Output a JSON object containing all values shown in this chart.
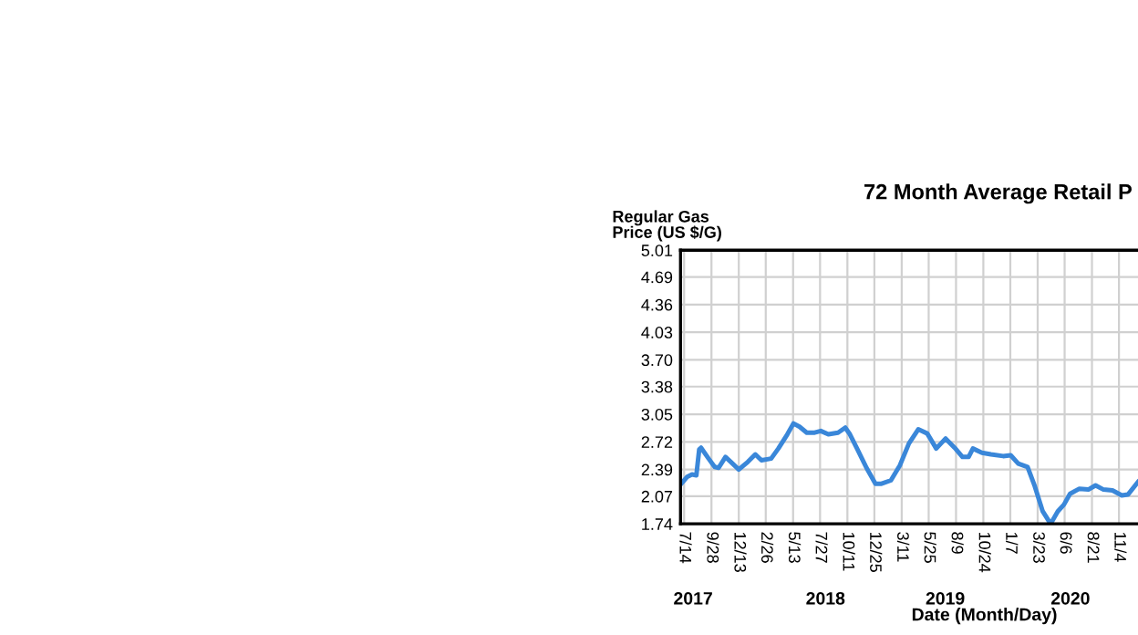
{
  "chart_data": {
    "type": "line",
    "title": "72 Month Average Retail P",
    "ylabel": "Regular Gas\nPrice (US $/G)",
    "xlabel": "Date (Month/Day)",
    "x": [
      "2017-07-06",
      "2017-07-22",
      "2017-08-05",
      "2017-08-17",
      "2017-08-25",
      "2017-08-30",
      "2017-09-20",
      "2017-10-07",
      "2017-10-18",
      "2017-11-06",
      "2017-11-21",
      "2017-12-13",
      "2018-01-07",
      "2018-01-28",
      "2018-02-14",
      "2018-03-13",
      "2018-04-02",
      "2018-04-27",
      "2018-05-14",
      "2018-05-31",
      "2018-06-20",
      "2018-07-12",
      "2018-07-29",
      "2018-08-19",
      "2018-09-15",
      "2018-10-05",
      "2018-10-18",
      "2018-11-08",
      "2018-12-03",
      "2018-12-28",
      "2019-01-14",
      "2019-02-09",
      "2019-03-06",
      "2019-03-31",
      "2019-04-26",
      "2019-05-21",
      "2019-06-15",
      "2019-07-11",
      "2019-08-05",
      "2019-08-27",
      "2019-09-13",
      "2019-09-25",
      "2019-10-20",
      "2019-11-14",
      "2019-12-18",
      "2020-01-08",
      "2020-01-29",
      "2020-02-24",
      "2020-03-15",
      "2020-04-06",
      "2020-04-28",
      "2020-05-18",
      "2020-06-04",
      "2020-06-21",
      "2020-07-17",
      "2020-08-11",
      "2020-08-31",
      "2020-09-22",
      "2020-10-17",
      "2020-11-12",
      "2020-11-29",
      "2020-12-27"
    ],
    "series": [
      {
        "color": "#3a87d9",
        "values": [
          2.22,
          2.3,
          2.33,
          2.32,
          2.63,
          2.65,
          2.52,
          2.42,
          2.41,
          2.54,
          2.48,
          2.39,
          2.48,
          2.57,
          2.5,
          2.52,
          2.64,
          2.81,
          2.94,
          2.9,
          2.83,
          2.83,
          2.85,
          2.81,
          2.83,
          2.89,
          2.81,
          2.63,
          2.41,
          2.22,
          2.22,
          2.26,
          2.44,
          2.7,
          2.87,
          2.82,
          2.64,
          2.76,
          2.65,
          2.54,
          2.54,
          2.64,
          2.59,
          2.57,
          2.55,
          2.56,
          2.46,
          2.42,
          2.19,
          1.89,
          1.74,
          1.89,
          1.97,
          2.1,
          2.16,
          2.15,
          2.2,
          2.15,
          2.14,
          2.08,
          2.09,
          2.24
        ]
      }
    ],
    "xlim": [
      "2017-07-04",
      "2020-12-27"
    ],
    "xticks": [
      {
        "value": "2017-07-14",
        "label": "7/14"
      },
      {
        "value": "2017-09-28",
        "label": "9/28"
      },
      {
        "value": "2017-12-13",
        "label": "12/13"
      },
      {
        "value": "2018-02-26",
        "label": "2/26"
      },
      {
        "value": "2018-05-13",
        "label": "5/13"
      },
      {
        "value": "2018-07-27",
        "label": "7/27"
      },
      {
        "value": "2018-10-11",
        "label": "10/11"
      },
      {
        "value": "2018-12-25",
        "label": "12/25"
      },
      {
        "value": "2019-03-11",
        "label": "3/11"
      },
      {
        "value": "2019-05-25",
        "label": "5/25"
      },
      {
        "value": "2019-08-09",
        "label": "8/9"
      },
      {
        "value": "2019-10-24",
        "label": "10/24"
      },
      {
        "value": "2020-01-07",
        "label": "1/7"
      },
      {
        "value": "2020-03-23",
        "label": "3/23"
      },
      {
        "value": "2020-06-06",
        "label": "6/6"
      },
      {
        "value": "2020-08-21",
        "label": "8/21"
      },
      {
        "value": "2020-11-04",
        "label": "11/4"
      }
    ],
    "x2lim": [
      "2017-07-04",
      "2020-12-27"
    ],
    "x2ticks": [
      {
        "value": "2017-08-08",
        "label": "2017"
      },
      {
        "value": "2018-08-11",
        "label": "2018"
      },
      {
        "value": "2019-07-10",
        "label": "2019"
      },
      {
        "value": "2020-06-22",
        "label": "2020"
      }
    ],
    "ylim": [
      1.74,
      5.01
    ],
    "yticks": [
      1.74,
      2.07,
      2.39,
      2.72,
      3.05,
      3.38,
      {
        "value": 3.7,
        "label": "3.70"
      },
      4.03,
      4.36,
      4.69,
      5.01
    ],
    "grid": true,
    "line_style": "solid",
    "marker": "none"
  }
}
